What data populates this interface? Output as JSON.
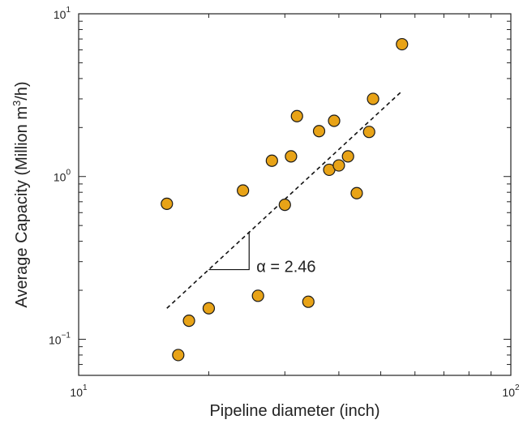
{
  "chart_data": {
    "type": "scatter",
    "x_scale": "log",
    "y_scale": "log",
    "xlabel": "Pipeline diameter (inch)",
    "ylabel": {
      "before": "Average Capacity (Million m",
      "sup": "3",
      "after": "/h)"
    },
    "xlim": [
      10,
      100
    ],
    "ylim": [
      0.06,
      10
    ],
    "x_ticks": [
      {
        "value": 10,
        "base": "10",
        "exp": "1"
      },
      {
        "value": 100,
        "base": "10",
        "exp": "2"
      }
    ],
    "y_ticks": [
      {
        "value": 0.1,
        "base": "10",
        "exp": "−1"
      },
      {
        "value": 1,
        "base": "10",
        "exp": "0"
      },
      {
        "value": 10,
        "base": "10",
        "exp": "1"
      }
    ],
    "points": [
      {
        "x": 16,
        "y": 0.68
      },
      {
        "x": 17,
        "y": 0.08
      },
      {
        "x": 18,
        "y": 0.13
      },
      {
        "x": 20,
        "y": 0.155
      },
      {
        "x": 24,
        "y": 0.82
      },
      {
        "x": 26,
        "y": 0.185
      },
      {
        "x": 28,
        "y": 1.25
      },
      {
        "x": 30,
        "y": 0.67
      },
      {
        "x": 31,
        "y": 1.33
      },
      {
        "x": 32,
        "y": 2.35
      },
      {
        "x": 34,
        "y": 0.17
      },
      {
        "x": 36,
        "y": 1.9
      },
      {
        "x": 38,
        "y": 1.1
      },
      {
        "x": 39,
        "y": 2.2
      },
      {
        "x": 40,
        "y": 1.17
      },
      {
        "x": 42,
        "y": 1.33
      },
      {
        "x": 44,
        "y": 0.79
      },
      {
        "x": 47,
        "y": 1.88
      },
      {
        "x": 48,
        "y": 3.0
      },
      {
        "x": 56,
        "y": 6.5
      }
    ],
    "fit_line": {
      "x": [
        16,
        56
      ],
      "y": [
        0.155,
        3.35
      ],
      "style": "dashed"
    },
    "annotation": {
      "text": "α = 2.46"
    },
    "marker_color": "#E8A317",
    "marker_edge": "#1a1a1a",
    "grid": false
  }
}
